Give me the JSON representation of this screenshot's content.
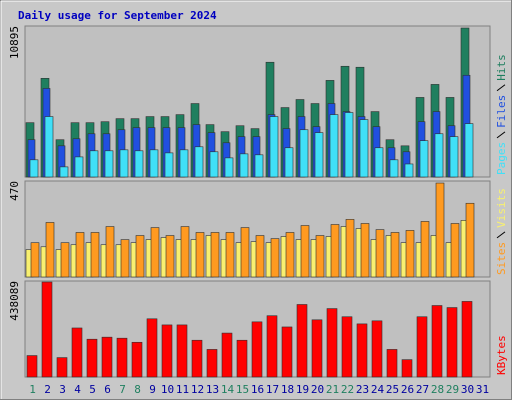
{
  "chart_data": [
    {
      "type": "bar",
      "title": "Daily usage for September 2024",
      "ylim": [
        0,
        10895
      ],
      "yticks": [
        10895
      ],
      "series": [
        {
          "name": "Hits",
          "color": "#1f7f5f",
          "values": [
            3920,
            7120,
            2690,
            3920,
            3920,
            3990,
            4210,
            4210,
            4360,
            4360,
            4500,
            5300,
            3780,
            3270,
            3700,
            3490,
            8280,
            5010,
            5590,
            5300,
            6970,
            7990,
            7920,
            4720,
            2690,
            2250,
            5740,
            6680,
            5740,
            10750,
            0
          ]
        },
        {
          "name": "Files",
          "color": "#2050e0",
          "values": [
            2690,
            6390,
            2250,
            2760,
            3120,
            3120,
            3410,
            3560,
            3560,
            3560,
            3560,
            3780,
            3200,
            2470,
            2910,
            2910,
            4500,
            3490,
            4360,
            3630,
            5300,
            4720,
            4360,
            3630,
            2110,
            1820,
            3990,
            4720,
            3700,
            7340,
            0
          ]
        },
        {
          "name": "Pages",
          "color": "#40e0f8",
          "values": [
            1240,
            4360,
            730,
            1450,
            1890,
            1890,
            1960,
            1890,
            1960,
            1740,
            1960,
            2180,
            1820,
            1380,
            1670,
            1600,
            4360,
            2110,
            3410,
            3200,
            4500,
            4650,
            4140,
            2110,
            1240,
            940,
            2620,
            3120,
            2910,
            3850,
            0
          ]
        }
      ]
    },
    {
      "type": "bar",
      "ylim": [
        0,
        470
      ],
      "yticks": [
        470
      ],
      "series": [
        {
          "name": "Visits",
          "color": "#f8f070",
          "values": [
            134,
            148,
            134,
            158,
            168,
            158,
            158,
            168,
            183,
            193,
            183,
            183,
            203,
            183,
            168,
            173,
            168,
            198,
            183,
            183,
            198,
            247,
            237,
            183,
            203,
            168,
            168,
            203,
            168,
            277,
            0
          ]
        },
        {
          "name": "Sites",
          "color": "#ff9a20",
          "values": [
            168,
            267,
            168,
            218,
            218,
            247,
            183,
            203,
            242,
            203,
            247,
            218,
            218,
            218,
            242,
            203,
            188,
            218,
            252,
            203,
            257,
            282,
            262,
            232,
            218,
            228,
            272,
            460,
            262,
            361,
            0
          ]
        }
      ]
    },
    {
      "type": "bar",
      "ylim": [
        0,
        438089
      ],
      "yticks": [
        438089
      ],
      "categories": [
        "1",
        "2",
        "3",
        "4",
        "5",
        "6",
        "7",
        "8",
        "9",
        "10",
        "11",
        "12",
        "13",
        "14",
        "15",
        "16",
        "17",
        "18",
        "19",
        "20",
        "21",
        "22",
        "23",
        "24",
        "25",
        "26",
        "27",
        "28",
        "29",
        "30",
        "31"
      ],
      "category_colors": [
        "#208060",
        "#0000a0",
        "#0000a0",
        "#0000a0",
        "#0000a0",
        "#0000a0",
        "#208060",
        "#208060",
        "#0000a0",
        "#0000a0",
        "#0000a0",
        "#0000a0",
        "#0000a0",
        "#208060",
        "#208060",
        "#0000a0",
        "#0000a0",
        "#0000a0",
        "#0000a0",
        "#0000a0",
        "#208060",
        "#208060",
        "#0000a0",
        "#0000a0",
        "#0000a0",
        "#0000a0",
        "#0000a0",
        "#208060",
        "#208060",
        "#0000a0",
        "#0000a0"
      ],
      "series": [
        {
          "name": "KBytes",
          "color": "#ff0000",
          "values": [
            97870,
            433420,
            88550,
            223700,
            172440,
            181760,
            177100,
            158460,
            265650,
            237680,
            237680,
            167780,
            125830,
            200400,
            167780,
            251670,
            279630,
            228360,
            330890,
            260990,
            312250,
            274970,
            242350,
            256330,
            125830,
            79230,
            274970,
            326230,
            316910,
            344870,
            0
          ]
        }
      ]
    }
  ]
}
